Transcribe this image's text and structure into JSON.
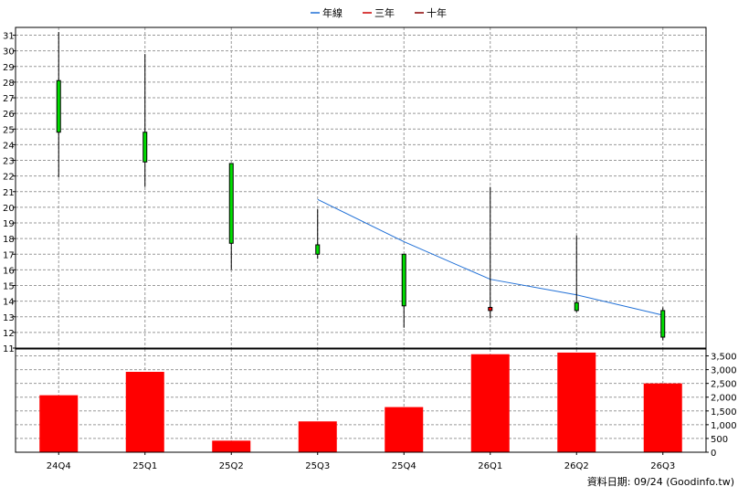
{
  "legend": [
    {
      "label": "年線",
      "color": "#1f6fd6"
    },
    {
      "label": "三年",
      "color": "#cc0000"
    },
    {
      "label": "十年",
      "color": "#8b0000"
    }
  ],
  "footer": "資料日期: 09/24 (Goodinfo.tw)",
  "chart_data": [
    {
      "type": "candlestick",
      "categories": [
        "24Q4",
        "25Q1",
        "25Q2",
        "25Q3",
        "25Q4",
        "26Q1",
        "26Q2",
        "26Q3"
      ],
      "ylim": [
        11,
        31.5
      ],
      "yticks": [
        11,
        12,
        13,
        14,
        15,
        16,
        17,
        18,
        19,
        20,
        21,
        22,
        23,
        24,
        25,
        26,
        27,
        28,
        29,
        30,
        31
      ],
      "grid": true,
      "series": [
        {
          "candles": [
            {
              "open": 24.8,
              "close": 28.1,
              "high": 31.2,
              "low": 21.9,
              "color": "#00dd00"
            },
            {
              "open": 22.9,
              "close": 24.8,
              "high": 29.8,
              "low": 21.3,
              "color": "#00dd00"
            },
            {
              "open": 17.7,
              "close": 22.8,
              "high": 22.8,
              "low": 16.0,
              "color": "#00dd00"
            },
            {
              "open": 17.0,
              "close": 17.6,
              "high": 19.9,
              "low": 16.7,
              "color": "#00dd00"
            },
            {
              "open": 13.7,
              "close": 17.0,
              "high": 17.0,
              "low": 12.3,
              "color": "#00dd00"
            },
            {
              "open": 13.4,
              "close": 13.6,
              "high": 21.3,
              "low": 12.9,
              "color": "#ff0000"
            },
            {
              "open": 13.4,
              "close": 13.9,
              "high": 18.2,
              "low": 13.3,
              "color": "#00dd00"
            },
            {
              "open": 11.7,
              "close": 13.4,
              "high": 13.6,
              "low": 11.5,
              "color": "#00dd00"
            }
          ]
        },
        {
          "name": "年線",
          "color": "#1f6fd6",
          "values": [
            null,
            null,
            null,
            20.5,
            17.8,
            15.4,
            14.4,
            13.1
          ]
        }
      ]
    },
    {
      "type": "bar",
      "categories": [
        "24Q4",
        "25Q1",
        "25Q2",
        "25Q3",
        "25Q4",
        "26Q1",
        "26Q2",
        "26Q3"
      ],
      "values": [
        2070,
        2920,
        420,
        1120,
        1640,
        3560,
        3620,
        2500
      ],
      "ylim": [
        0,
        3750
      ],
      "yticks": [
        0,
        500,
        1000,
        1500,
        2000,
        2500,
        3000,
        3500
      ],
      "ytick_labels": [
        "0",
        "500",
        "1,000",
        "1,500",
        "2,000",
        "2,500",
        "3,000",
        "3,500"
      ],
      "color": "#ff0000",
      "grid": true
    }
  ]
}
